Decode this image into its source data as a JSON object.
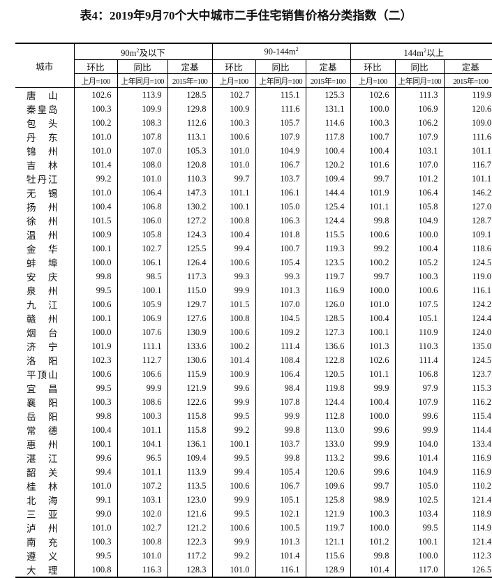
{
  "title": "表4：2019年9月70个大中城市二手住宅销售价格分类指数（二）",
  "header": {
    "city": "城市",
    "groups": [
      {
        "pre": "90m",
        "sup": "2",
        "post": "及以下"
      },
      {
        "pre": "90-144m",
        "sup": "2",
        "post": ""
      },
      {
        "pre": "144m",
        "sup": "2",
        "post": "以上"
      }
    ],
    "metrics": [
      "环比",
      "同比",
      "定基"
    ],
    "bases": [
      "上月=100",
      "上年同月=100",
      "2015年=100"
    ]
  },
  "rows": [
    {
      "city": "唐山",
      "v": [
        "102.6",
        "113.9",
        "128.5",
        "102.7",
        "115.1",
        "125.3",
        "102.6",
        "111.3",
        "119.9"
      ]
    },
    {
      "city": "秦皇岛",
      "v": [
        "100.3",
        "109.9",
        "129.8",
        "100.9",
        "111.6",
        "131.1",
        "100.0",
        "106.9",
        "120.6"
      ]
    },
    {
      "city": "包头",
      "v": [
        "100.2",
        "108.3",
        "112.6",
        "100.3",
        "105.7",
        "114.6",
        "100.3",
        "106.2",
        "109.0"
      ]
    },
    {
      "city": "丹东",
      "v": [
        "101.0",
        "107.8",
        "113.1",
        "100.6",
        "107.9",
        "117.8",
        "100.7",
        "107.9",
        "111.6"
      ]
    },
    {
      "city": "锦州",
      "v": [
        "101.0",
        "107.0",
        "105.3",
        "101.0",
        "104.9",
        "100.4",
        "100.4",
        "103.1",
        "101.1"
      ]
    },
    {
      "city": "吉林",
      "v": [
        "101.4",
        "108.0",
        "120.8",
        "101.0",
        "106.7",
        "120.2",
        "101.6",
        "107.0",
        "116.7"
      ]
    },
    {
      "city": "牡丹江",
      "v": [
        "99.2",
        "101.0",
        "110.3",
        "99.7",
        "103.7",
        "109.4",
        "99.7",
        "101.2",
        "101.1"
      ]
    },
    {
      "city": "无锡",
      "v": [
        "101.0",
        "106.4",
        "147.3",
        "101.1",
        "106.1",
        "144.4",
        "101.9",
        "106.4",
        "146.2"
      ]
    },
    {
      "city": "扬州",
      "v": [
        "100.4",
        "106.8",
        "130.2",
        "100.1",
        "105.0",
        "125.4",
        "101.1",
        "105.8",
        "127.0"
      ]
    },
    {
      "city": "徐州",
      "v": [
        "101.5",
        "106.0",
        "127.2",
        "100.8",
        "106.3",
        "124.4",
        "99.8",
        "104.9",
        "128.7"
      ]
    },
    {
      "city": "温州",
      "v": [
        "100.9",
        "105.8",
        "124.3",
        "100.4",
        "101.8",
        "115.5",
        "100.6",
        "100.0",
        "109.1"
      ]
    },
    {
      "city": "金华",
      "v": [
        "100.1",
        "102.7",
        "125.5",
        "99.4",
        "100.7",
        "119.3",
        "99.2",
        "100.4",
        "118.6"
      ]
    },
    {
      "city": "蚌埠",
      "v": [
        "100.0",
        "106.1",
        "126.4",
        "100.6",
        "105.4",
        "123.5",
        "100.2",
        "105.2",
        "124.5"
      ]
    },
    {
      "city": "安庆",
      "v": [
        "99.8",
        "98.5",
        "117.3",
        "99.3",
        "99.3",
        "119.7",
        "99.7",
        "100.3",
        "119.0"
      ]
    },
    {
      "city": "泉州",
      "v": [
        "99.5",
        "100.1",
        "115.0",
        "99.9",
        "101.3",
        "116.9",
        "100.0",
        "100.6",
        "116.1"
      ]
    },
    {
      "city": "九江",
      "v": [
        "100.6",
        "105.9",
        "129.7",
        "101.5",
        "107.0",
        "126.0",
        "101.0",
        "107.5",
        "124.2"
      ]
    },
    {
      "city": "赣州",
      "v": [
        "100.1",
        "106.9",
        "127.6",
        "100.8",
        "104.5",
        "128.5",
        "100.4",
        "105.1",
        "124.4"
      ]
    },
    {
      "city": "烟台",
      "v": [
        "100.0",
        "107.6",
        "130.9",
        "100.6",
        "109.2",
        "127.3",
        "100.1",
        "110.9",
        "124.0"
      ]
    },
    {
      "city": "济宁",
      "v": [
        "101.9",
        "111.1",
        "133.6",
        "100.2",
        "111.4",
        "136.6",
        "101.3",
        "110.3",
        "135.0"
      ]
    },
    {
      "city": "洛阳",
      "v": [
        "102.3",
        "112.7",
        "130.6",
        "101.4",
        "108.4",
        "122.8",
        "102.6",
        "111.4",
        "124.5"
      ]
    },
    {
      "city": "平顶山",
      "v": [
        "100.6",
        "106.6",
        "115.9",
        "100.9",
        "106.4",
        "120.5",
        "101.1",
        "106.8",
        "123.7"
      ]
    },
    {
      "city": "宜昌",
      "v": [
        "99.5",
        "99.9",
        "121.9",
        "99.6",
        "98.4",
        "119.8",
        "99.9",
        "97.9",
        "115.3"
      ]
    },
    {
      "city": "襄阳",
      "v": [
        "100.3",
        "108.6",
        "122.6",
        "99.9",
        "107.8",
        "124.4",
        "100.4",
        "107.9",
        "116.2"
      ]
    },
    {
      "city": "岳阳",
      "v": [
        "99.8",
        "100.3",
        "115.8",
        "99.5",
        "99.9",
        "112.8",
        "100.0",
        "99.6",
        "115.4"
      ]
    },
    {
      "city": "常德",
      "v": [
        "100.4",
        "101.1",
        "115.8",
        "99.2",
        "99.8",
        "113.0",
        "99.6",
        "99.9",
        "114.4"
      ]
    },
    {
      "city": "惠州",
      "v": [
        "100.1",
        "104.1",
        "136.1",
        "100.1",
        "103.7",
        "133.0",
        "99.9",
        "104.0",
        "133.4"
      ]
    },
    {
      "city": "湛江",
      "v": [
        "99.6",
        "96.5",
        "109.4",
        "99.5",
        "99.8",
        "113.2",
        "99.6",
        "101.4",
        "116.9"
      ]
    },
    {
      "city": "韶关",
      "v": [
        "99.4",
        "101.1",
        "113.9",
        "99.4",
        "105.4",
        "120.6",
        "99.6",
        "104.9",
        "116.9"
      ]
    },
    {
      "city": "桂林",
      "v": [
        "101.0",
        "107.2",
        "113.5",
        "100.6",
        "106.7",
        "109.6",
        "99.7",
        "105.0",
        "110.2"
      ]
    },
    {
      "city": "北海",
      "v": [
        "99.1",
        "103.1",
        "123.0",
        "99.9",
        "105.1",
        "125.8",
        "98.9",
        "102.5",
        "121.4"
      ]
    },
    {
      "city": "三亚",
      "v": [
        "99.0",
        "102.0",
        "121.6",
        "99.5",
        "102.1",
        "121.9",
        "100.3",
        "103.4",
        "118.9"
      ]
    },
    {
      "city": "泸州",
      "v": [
        "101.0",
        "102.7",
        "121.2",
        "100.6",
        "100.5",
        "119.7",
        "100.0",
        "99.5",
        "114.9"
      ]
    },
    {
      "city": "南充",
      "v": [
        "100.3",
        "100.8",
        "122.3",
        "99.9",
        "101.3",
        "121.1",
        "101.2",
        "100.1",
        "121.4"
      ]
    },
    {
      "city": "遵义",
      "v": [
        "99.5",
        "101.0",
        "117.2",
        "99.2",
        "101.4",
        "115.6",
        "99.8",
        "100.0",
        "112.3"
      ]
    },
    {
      "city": "大理",
      "v": [
        "100.8",
        "116.3",
        "128.3",
        "101.0",
        "116.1",
        "128.9",
        "101.4",
        "117.0",
        "126.5"
      ]
    }
  ]
}
